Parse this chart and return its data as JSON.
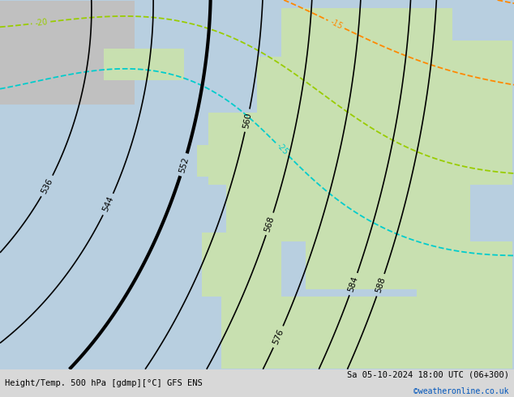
{
  "title_left": "Height/Temp. 500 hPa [gdmp][°C] GFS ENS",
  "title_right": "Sa 05-10-2024 18:00 UTC (06+300)",
  "credit": "©weatheronline.co.uk",
  "ocean_color": "#b8cfe0",
  "land_green": "#c8e0b0",
  "land_grey": "#b8b8b8",
  "land_white": "#e8e8e0",
  "figsize": [
    6.34,
    4.9
  ],
  "dpi": 100,
  "lon_min": -42,
  "lon_max": 42,
  "lat_min": 27,
  "lat_max": 73
}
